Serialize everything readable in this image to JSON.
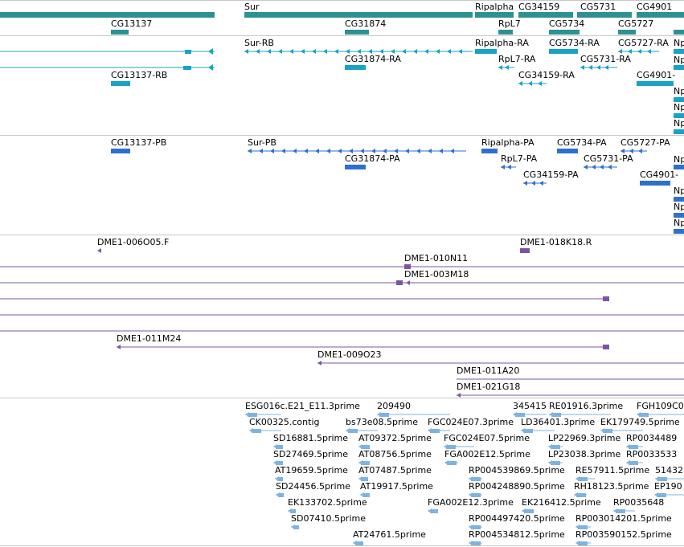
{
  "colors": {
    "gene_span": "#2e9191",
    "mrna": "#17a3c4",
    "protein": "#2f6fd0",
    "bac": "#7b55a3",
    "est": "#7fb3df",
    "separator": "#c8c8c8"
  },
  "tracks": {
    "genes": {
      "labels": [
        "Sur",
        "Ripalpha",
        "CG34159",
        "CG5731",
        "CG4901",
        "CG13137",
        "CG31874",
        "RpL7",
        "CG5734",
        "CG5727"
      ]
    },
    "transcripts": {
      "labels": [
        "Sur-RB",
        "Ripalpha-RA",
        "CG5734-RA",
        "CG5727-RA",
        "Np",
        "CG31874-RA",
        "RpL7-RA",
        "CG5731-RA",
        "Np",
        "CG13137-RB",
        "CG34159-RA",
        "CG4901-",
        "Np",
        "Np",
        "Np"
      ]
    },
    "proteins": {
      "labels": [
        "CG13137-PB",
        "Sur-PB",
        "Ripalpha-PA",
        "CG5734-PA",
        "CG5727-PA",
        "Np",
        "CG31874-PA",
        "RpL7-PA",
        "CG5731-PA",
        "CG34159-PA",
        "CG4901-",
        "Np",
        "Np",
        "Np"
      ]
    },
    "bacs": {
      "labels": [
        "DME1-006O05.F",
        "DME1-018K18.R",
        "DME1-010N11",
        "DME1-003M18",
        "DME1-011M24",
        "DME1-009O23",
        "DME1-011A20",
        "DME1-021G18"
      ]
    },
    "ests": {
      "labels": [
        "ESG016c.E21_E11.3prime",
        "209490",
        "345415",
        "RE01916.3prime",
        "FGH109C0",
        "CK00325.contig",
        "bs73e08.5prime",
        "FGC024E07.3prime",
        "LD36401.3prime",
        "EK179749.5prime",
        "SD16881.5prime",
        "AT09372.5prime",
        "FGC024E07.5prime",
        "LP22969.3prime",
        "RP0034489",
        "SD27469.5prime",
        "AT08756.5prime",
        "FGA002E12.5prime",
        "LP23038.3prime",
        "RP0033533",
        "AT19659.5prime",
        "AT07487.5prime",
        "RP004539869.5prime",
        "RE57911.5prime",
        "51432",
        "SD24456.5prime",
        "AT19917.5prime",
        "RP004248890.5prime",
        "RH18123.5prime",
        "EP190",
        "EK133702.5prime",
        "FGA002E12.3prime",
        "EK216412.5prime",
        "RP0035648",
        "SD07410.5prime",
        "RP004497420.5prime",
        "RP003014201.5prime",
        "AT24761.5prime",
        "RP004534812.5prime",
        "RP003590152.5prime"
      ]
    }
  }
}
